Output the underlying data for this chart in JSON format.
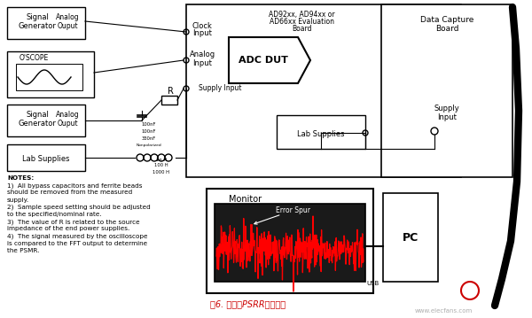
{
  "bg_color": "#ffffff",
  "title_color": "#cc0000",
  "title_text": "图6. 典型的PSRR测试设置",
  "notes": [
    "NOTES:",
    "1)  All bypass capacitors and ferrite beads",
    "should be removed from the measured",
    "supply.",
    "2)  Sample speed setting should be adjusted",
    "to the specified/nominal rate.",
    "3)  The value of R is related to the source",
    "impedance of the end power supplies.",
    "4)  The signal measured by the oscilloscope",
    "is compared to the FFT output to determine",
    "the PSMR."
  ],
  "watermark": "www.elecfans.com"
}
